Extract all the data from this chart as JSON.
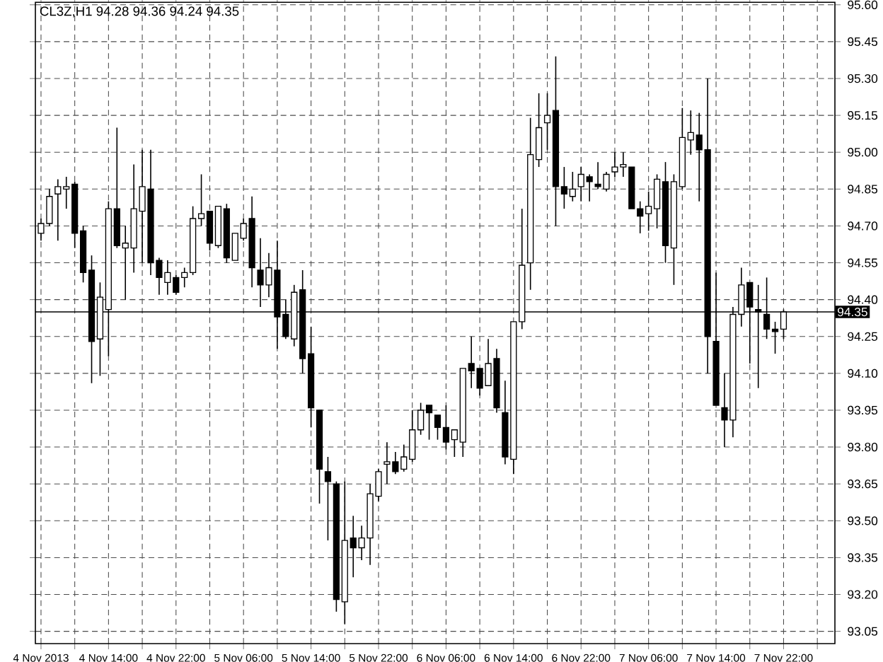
{
  "chart_data": {
    "type": "candlestick",
    "title": "CL3Z,H1  94.28 94.36 94.24 94.35",
    "x": [
      "2013-11-04T06:00",
      "2013-11-04T07:00",
      "2013-11-04T08:00",
      "2013-11-04T09:00",
      "2013-11-04T10:00",
      "2013-11-04T11:00",
      "2013-11-04T12:00",
      "2013-11-04T13:00",
      "2013-11-04T14:00",
      "2013-11-04T15:00",
      "2013-11-04T16:00",
      "2013-11-04T17:00",
      "2013-11-04T18:00",
      "2013-11-04T19:00",
      "2013-11-04T20:00",
      "2013-11-04T21:00",
      "2013-11-04T22:00",
      "2013-11-04T23:00",
      "2013-11-05T00:00",
      "2013-11-05T01:00",
      "2013-11-05T02:00",
      "2013-11-05T03:00",
      "2013-11-05T04:00",
      "2013-11-05T05:00",
      "2013-11-05T06:00",
      "2013-11-05T07:00",
      "2013-11-05T08:00",
      "2013-11-05T09:00",
      "2013-11-05T10:00",
      "2013-11-05T11:00",
      "2013-11-05T12:00",
      "2013-11-05T13:00",
      "2013-11-05T14:00",
      "2013-11-05T15:00",
      "2013-11-05T16:00",
      "2013-11-05T17:00",
      "2013-11-05T18:00",
      "2013-11-05T19:00",
      "2013-11-05T20:00",
      "2013-11-05T21:00",
      "2013-11-05T22:00",
      "2013-11-05T23:00",
      "2013-11-06T00:00",
      "2013-11-06T01:00",
      "2013-11-06T02:00",
      "2013-11-06T03:00",
      "2013-11-06T04:00",
      "2013-11-06T05:00",
      "2013-11-06T06:00",
      "2013-11-06T07:00",
      "2013-11-06T08:00",
      "2013-11-06T09:00",
      "2013-11-06T10:00",
      "2013-11-06T11:00",
      "2013-11-06T12:00",
      "2013-11-06T13:00",
      "2013-11-06T14:00",
      "2013-11-06T15:00",
      "2013-11-06T16:00",
      "2013-11-06T17:00",
      "2013-11-06T18:00",
      "2013-11-06T19:00",
      "2013-11-06T20:00",
      "2013-11-06T21:00",
      "2013-11-06T22:00",
      "2013-11-06T23:00",
      "2013-11-07T00:00",
      "2013-11-07T01:00",
      "2013-11-07T02:00",
      "2013-11-07T03:00",
      "2013-11-07T04:00",
      "2013-11-07T05:00",
      "2013-11-07T06:00",
      "2013-11-07T07:00",
      "2013-11-07T08:00",
      "2013-11-07T09:00",
      "2013-11-07T10:00",
      "2013-11-07T11:00",
      "2013-11-07T12:00",
      "2013-11-07T13:00",
      "2013-11-07T14:00",
      "2013-11-07T15:00",
      "2013-11-07T16:00",
      "2013-11-07T17:00",
      "2013-11-07T18:00",
      "2013-11-07T19:00",
      "2013-11-07T20:00",
      "2013-11-07T21:00",
      "2013-11-07T22:00"
    ],
    "ohlc": [
      [
        94.67,
        94.73,
        94.64,
        94.71
      ],
      [
        94.71,
        94.85,
        94.7,
        94.82
      ],
      [
        94.83,
        94.89,
        94.64,
        94.86
      ],
      [
        94.85,
        94.9,
        94.77,
        94.86
      ],
      [
        94.87,
        94.88,
        94.61,
        94.67
      ],
      [
        94.68,
        94.7,
        94.47,
        94.51
      ],
      [
        94.52,
        94.58,
        94.06,
        94.23
      ],
      [
        94.24,
        94.47,
        94.09,
        94.41
      ],
      [
        94.36,
        94.8,
        94.17,
        94.77
      ],
      [
        94.77,
        95.1,
        94.61,
        94.62
      ],
      [
        94.61,
        94.7,
        94.4,
        94.63
      ],
      [
        94.61,
        94.95,
        94.51,
        94.77
      ],
      [
        94.76,
        95.01,
        94.55,
        94.86
      ],
      [
        94.85,
        95.01,
        94.5,
        94.55
      ],
      [
        94.56,
        94.57,
        94.42,
        94.49
      ],
      [
        94.47,
        94.56,
        94.42,
        94.51
      ],
      [
        94.49,
        94.5,
        94.42,
        94.43
      ],
      [
        94.49,
        94.53,
        94.45,
        94.51
      ],
      [
        94.51,
        94.78,
        94.5,
        94.73
      ],
      [
        94.73,
        94.91,
        94.7,
        94.75
      ],
      [
        94.76,
        94.76,
        94.6,
        94.63
      ],
      [
        94.62,
        94.78,
        94.61,
        94.78
      ],
      [
        94.77,
        94.79,
        94.55,
        94.57
      ],
      [
        94.56,
        94.67,
        94.56,
        94.67
      ],
      [
        94.65,
        94.73,
        94.64,
        94.71
      ],
      [
        94.73,
        94.82,
        94.45,
        94.53
      ],
      [
        94.52,
        94.65,
        94.37,
        94.46
      ],
      [
        94.46,
        94.59,
        94.41,
        94.53
      ],
      [
        94.52,
        94.64,
        94.2,
        94.33
      ],
      [
        94.34,
        94.4,
        94.24,
        94.25
      ],
      [
        94.24,
        94.46,
        94.21,
        94.43
      ],
      [
        94.44,
        94.52,
        94.1,
        94.16
      ],
      [
        94.18,
        94.29,
        93.88,
        93.96
      ],
      [
        93.95,
        93.95,
        93.57,
        93.71
      ],
      [
        93.7,
        93.76,
        93.42,
        93.66
      ],
      [
        93.65,
        93.66,
        93.13,
        93.18
      ],
      [
        93.17,
        93.66,
        93.08,
        93.42
      ],
      [
        93.43,
        93.52,
        93.27,
        93.39
      ],
      [
        93.39,
        93.48,
        93.34,
        93.43
      ],
      [
        93.43,
        93.65,
        93.32,
        93.61
      ],
      [
        93.6,
        93.71,
        93.58,
        93.7
      ],
      [
        93.73,
        93.82,
        93.65,
        93.74
      ],
      [
        93.74,
        93.78,
        93.69,
        93.7
      ],
      [
        93.71,
        93.81,
        93.7,
        93.76
      ],
      [
        93.75,
        93.95,
        93.74,
        93.87
      ],
      [
        93.87,
        93.98,
        93.85,
        93.95
      ],
      [
        93.97,
        93.97,
        93.83,
        93.94
      ],
      [
        93.93,
        93.93,
        93.83,
        93.88
      ],
      [
        93.88,
        93.97,
        93.79,
        93.82
      ],
      [
        93.83,
        93.87,
        93.76,
        93.87
      ],
      [
        93.82,
        94.12,
        93.76,
        94.12
      ],
      [
        94.14,
        94.25,
        94.04,
        94.11
      ],
      [
        94.12,
        94.12,
        94.01,
        94.04
      ],
      [
        94.05,
        94.24,
        94.05,
        94.14
      ],
      [
        94.16,
        94.2,
        93.94,
        93.96
      ],
      [
        93.94,
        94.07,
        93.73,
        93.76
      ],
      [
        93.75,
        94.31,
        93.69,
        94.31
      ],
      [
        94.31,
        94.77,
        94.28,
        94.54
      ],
      [
        94.55,
        95.14,
        94.44,
        94.99
      ],
      [
        94.97,
        95.24,
        94.94,
        95.1
      ],
      [
        95.12,
        95.24,
        95.01,
        95.15
      ],
      [
        95.17,
        95.39,
        94.7,
        94.86
      ],
      [
        94.86,
        94.94,
        94.77,
        94.83
      ],
      [
        94.82,
        94.92,
        94.8,
        94.85
      ],
      [
        94.86,
        94.94,
        94.8,
        94.91
      ],
      [
        94.9,
        94.91,
        94.8,
        94.88
      ],
      [
        94.87,
        94.96,
        94.85,
        94.86
      ],
      [
        94.85,
        94.92,
        94.84,
        94.91
      ],
      [
        94.92,
        95.0,
        94.9,
        94.94
      ],
      [
        94.94,
        95.0,
        94.9,
        94.95
      ],
      [
        94.94,
        94.94,
        94.77,
        94.77
      ],
      [
        94.77,
        94.8,
        94.67,
        94.74
      ],
      [
        94.75,
        94.84,
        94.68,
        94.78
      ],
      [
        94.77,
        94.91,
        94.69,
        94.89
      ],
      [
        94.88,
        94.96,
        94.55,
        94.62
      ],
      [
        94.61,
        94.91,
        94.46,
        94.88
      ],
      [
        94.86,
        95.18,
        94.85,
        95.06
      ],
      [
        95.05,
        95.17,
        94.99,
        95.08
      ],
      [
        95.07,
        95.16,
        94.8,
        95.01
      ],
      [
        95.01,
        95.3,
        94.1,
        94.25
      ],
      [
        94.23,
        94.51,
        93.97,
        93.97
      ],
      [
        93.96,
        94.1,
        93.8,
        93.91
      ],
      [
        93.91,
        94.37,
        93.84,
        94.34
      ],
      [
        94.34,
        94.53,
        94.29,
        94.46
      ],
      [
        94.47,
        94.47,
        94.14,
        94.37
      ],
      [
        94.36,
        94.46,
        94.04,
        94.35
      ],
      [
        94.34,
        94.49,
        94.24,
        94.28
      ],
      [
        94.28,
        94.31,
        94.18,
        94.27
      ],
      [
        94.28,
        94.36,
        94.24,
        94.35
      ]
    ],
    "xlim": [
      "2013-11-04T05:20",
      "2013-11-08T04:05"
    ],
    "xticks": [
      {
        "value": "2013-11-04T06:00",
        "label": "4 Nov 2013"
      },
      {
        "value": "2013-11-04T10:00",
        "label": null
      },
      {
        "value": "2013-11-04T14:00",
        "label": "4 Nov 14:00"
      },
      {
        "value": "2013-11-04T18:00",
        "label": null
      },
      {
        "value": "2013-11-04T22:00",
        "label": "4 Nov 22:00"
      },
      {
        "value": "2013-11-05T02:00",
        "label": null
      },
      {
        "value": "2013-11-05T06:00",
        "label": "5 Nov 06:00"
      },
      {
        "value": "2013-11-05T10:00",
        "label": null
      },
      {
        "value": "2013-11-05T14:00",
        "label": "5 Nov 14:00"
      },
      {
        "value": "2013-11-05T18:00",
        "label": null
      },
      {
        "value": "2013-11-05T22:00",
        "label": "5 Nov 22:00"
      },
      {
        "value": "2013-11-06T02:00",
        "label": null
      },
      {
        "value": "2013-11-06T06:00",
        "label": "6 Nov 06:00"
      },
      {
        "value": "2013-11-06T10:00",
        "label": null
      },
      {
        "value": "2013-11-06T14:00",
        "label": "6 Nov 14:00"
      },
      {
        "value": "2013-11-06T18:00",
        "label": null
      },
      {
        "value": "2013-11-06T22:00",
        "label": "6 Nov 22:00"
      },
      {
        "value": "2013-11-07T02:00",
        "label": null
      },
      {
        "value": "2013-11-07T06:00",
        "label": "7 Nov 06:00"
      },
      {
        "value": "2013-11-07T10:00",
        "label": null
      },
      {
        "value": "2013-11-07T14:00",
        "label": "7 Nov 14:00"
      },
      {
        "value": "2013-11-07T18:00",
        "label": null
      },
      {
        "value": "2013-11-07T22:00",
        "label": "7 Nov 22:00"
      },
      {
        "value": "2013-11-08T02:00",
        "label": null
      }
    ],
    "ylim": [
      93.0,
      95.61
    ],
    "yticks": [
      93.05,
      {
        "value": 93.2,
        "label": "93.20"
      },
      93.35,
      {
        "value": 93.5,
        "label": "93.50"
      },
      93.65,
      {
        "value": 93.8,
        "label": "93.80"
      },
      93.95,
      {
        "value": 94.1,
        "label": "94.10"
      },
      94.25,
      {
        "value": 94.4,
        "label": "94.40"
      },
      94.55,
      {
        "value": 94.7,
        "label": "94.70"
      },
      94.85,
      {
        "value": 95.0,
        "label": "95.00"
      },
      95.15,
      {
        "value": 95.3,
        "label": "95.30"
      },
      95.45,
      {
        "value": 95.6,
        "label": "95.60"
      }
    ],
    "ref_lines": [
      {
        "axis": "y",
        "value": 94.35,
        "label": "94.35",
        "color": "#000000"
      }
    ],
    "grid": true
  }
}
